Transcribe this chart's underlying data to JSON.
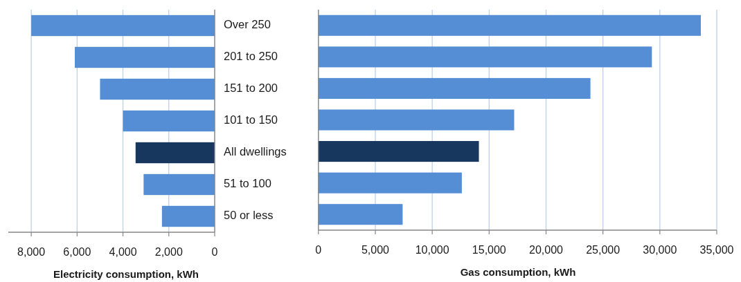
{
  "chart_data": [
    {
      "type": "bar",
      "orientation": "horizontal",
      "categories": [
        "Over 250",
        "201 to 250",
        "151 to 200",
        "101 to 150",
        "All dwellings",
        "51 to 100",
        "50 or less"
      ],
      "values": [
        8000,
        6100,
        5000,
        4000,
        3450,
        3100,
        2300
      ],
      "colors": [
        "#558ed5",
        "#558ed5",
        "#558ed5",
        "#558ed5",
        "#17375e",
        "#558ed5",
        "#558ed5"
      ],
      "xlim": [
        9000,
        0
      ],
      "xticks": [
        {
          "value": 8000,
          "label": "8,000"
        },
        {
          "value": 6000,
          "label": "6,000"
        },
        {
          "value": 4000,
          "label": "4,000"
        },
        {
          "value": 2000,
          "label": "2,000"
        },
        0
      ],
      "xlabel": "Electricity consumption, kWh",
      "grid": "x"
    },
    {
      "type": "bar",
      "orientation": "horizontal",
      "categories": [
        "Over 250",
        "201 to 250",
        "151 to 200",
        "101 to 150",
        "All dwellings",
        "51 to 100",
        "50 or less"
      ],
      "values": [
        33600,
        29300,
        23900,
        17200,
        14100,
        12600,
        7400
      ],
      "colors": [
        "#558ed5",
        "#558ed5",
        "#558ed5",
        "#558ed5",
        "#17375e",
        "#558ed5",
        "#558ed5"
      ],
      "xlim": [
        0,
        35000
      ],
      "xticks": [
        0,
        {
          "value": 5000,
          "label": "5,000"
        },
        {
          "value": 10000,
          "label": "10,000"
        },
        {
          "value": 15000,
          "label": "15,000"
        },
        {
          "value": 20000,
          "label": "20,000"
        },
        {
          "value": 25000,
          "label": "25,000"
        },
        {
          "value": 30000,
          "label": "30,000"
        },
        {
          "value": 35000,
          "label": "35,000"
        }
      ],
      "xlabel": "Gas consumption, kWh",
      "grid": "x",
      "tick_labels": "x"
    }
  ]
}
